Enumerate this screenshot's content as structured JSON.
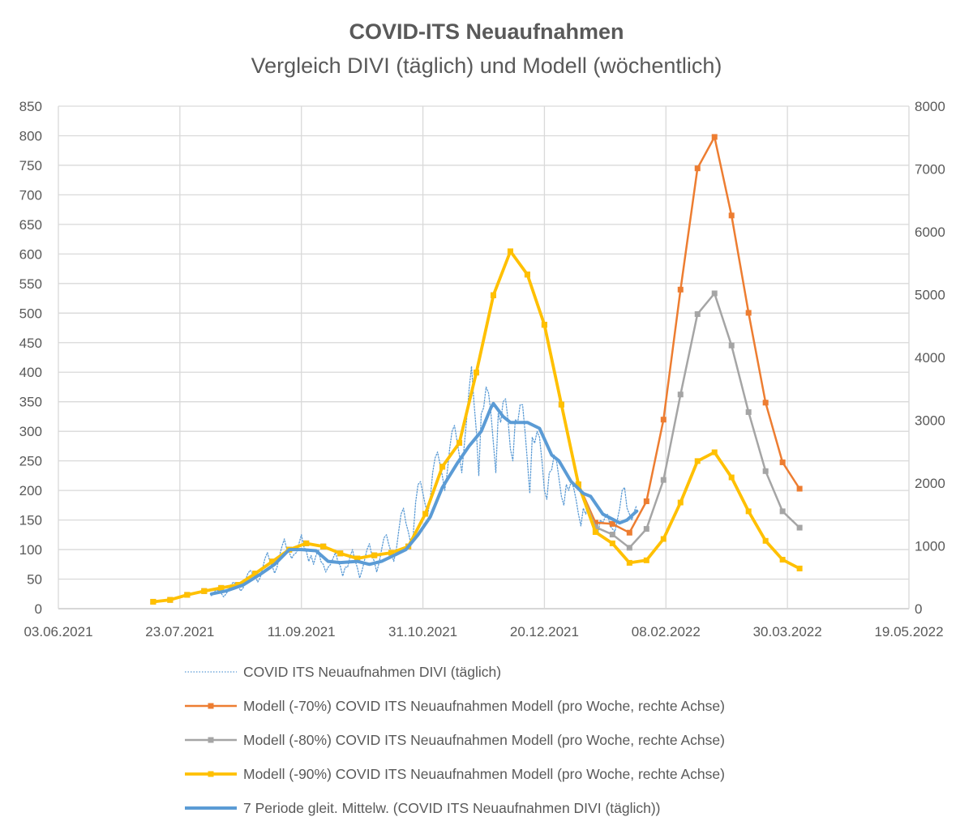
{
  "chart_data": {
    "type": "line",
    "title": "COVID-ITS Neuaufnahmen",
    "subtitle": "Vergleich DIVI (täglich) und Modell (wöchentlich)",
    "x_axis": {
      "type": "date",
      "start_date": "03.06.2021",
      "unit": "days since start_date",
      "range": [
        0,
        350
      ],
      "tick_labels": [
        "03.06.2021",
        "23.07.2021",
        "11.09.2021",
        "31.10.2021",
        "20.12.2021",
        "08.02.2022",
        "30.03.2022",
        "19.05.2022"
      ]
    },
    "y_left": {
      "range": [
        0,
        850
      ],
      "ticks": [
        "0",
        "50",
        "100",
        "150",
        "200",
        "250",
        "300",
        "350",
        "400",
        "450",
        "500",
        "550",
        "600",
        "650",
        "700",
        "750",
        "800",
        "850"
      ]
    },
    "y_right": {
      "range": [
        0,
        8000
      ],
      "ticks": [
        "0",
        "1000",
        "2000",
        "3000",
        "4000",
        "5000",
        "6000",
        "7000",
        "8000"
      ]
    },
    "grid": true,
    "legend_position": "bottom",
    "series": [
      {
        "name": "COVID ITS Neuaufnahmen DIVI (täglich)",
        "axis": "left",
        "style": "dotted",
        "color": "#5b9bd5",
        "start_day": 63,
        "values": [
          22,
          28,
          32,
          30,
          26,
          20,
          25,
          32,
          40,
          45,
          42,
          38,
          30,
          35,
          48,
          60,
          65,
          58,
          55,
          45,
          52,
          68,
          85,
          95,
          80,
          72,
          60,
          70,
          90,
          105,
          118,
          100,
          95,
          85,
          92,
          95,
          110,
          125,
          105,
          98,
          80,
          90,
          75,
          90,
          100,
          80,
          75,
          62,
          70,
          75,
          85,
          95,
          80,
          72,
          55,
          70,
          70,
          88,
          100,
          82,
          70,
          52,
          65,
          82,
          100,
          110,
          90,
          80,
          62,
          78,
          100,
          120,
          125,
          108,
          95,
          80,
          98,
          130,
          160,
          170,
          145,
          130,
          110,
          125,
          180,
          210,
          215,
          195,
          175,
          160,
          185,
          230,
          255,
          265,
          245,
          225,
          200,
          230,
          270,
          300,
          310,
          285,
          260,
          230,
          275,
          320,
          370,
          410,
          350,
          300,
          225,
          330,
          340,
          375,
          365,
          330,
          280,
          230,
          330,
          315,
          350,
          355,
          320,
          270,
          250,
          320,
          315,
          345,
          345,
          300,
          250,
          195,
          290,
          280,
          300,
          290,
          250,
          200,
          185,
          230,
          235,
          260,
          250,
          220,
          190,
          175,
          210,
          200,
          215,
          205,
          185,
          160,
          140,
          170,
          160,
          175,
          165,
          145,
          130,
          125,
          150,
          145,
          155,
          160,
          140,
          135,
          130,
          150,
          170,
          200,
          205,
          170,
          160,
          150,
          165,
          175
        ]
      },
      {
        "name": "Modell (-70%) COVID ITS Neuaufnahmen Modell (pro Woche, rechte Achse)",
        "axis": "right",
        "style": "line-marker",
        "color": "#ed7d31",
        "start_day": 39,
        "step_days": 7,
        "values": [
          110,
          140,
          220,
          280,
          330,
          380,
          560,
          750,
          940,
          1040,
          990,
          880,
          800,
          850,
          890,
          990,
          1510,
          2260,
          2640,
          3760,
          4990,
          5690,
          5320,
          4520,
          3250,
          1980,
          1370,
          1350,
          1210,
          1710,
          3010,
          5080,
          7010,
          7510,
          6260,
          4710,
          3280,
          2330,
          1910
        ]
      },
      {
        "name": "Modell (-80%) COVID ITS Neuaufnahmen Modell (pro Woche, rechte Achse)",
        "axis": "right",
        "style": "line-marker",
        "color": "#a5a5a5",
        "start_day": 39,
        "step_days": 7,
        "values": [
          110,
          140,
          220,
          280,
          330,
          380,
          560,
          750,
          940,
          1040,
          990,
          880,
          800,
          850,
          890,
          990,
          1510,
          2260,
          2640,
          3760,
          4990,
          5690,
          5320,
          4520,
          3250,
          1980,
          1300,
          1180,
          970,
          1270,
          2050,
          3410,
          4690,
          5020,
          4190,
          3130,
          2190,
          1550,
          1290
        ]
      },
      {
        "name": "Modell (-90%) COVID ITS Neuaufnahmen Modell (pro Woche, rechte Achse)",
        "axis": "right",
        "style": "line-marker",
        "color": "#ffc000",
        "start_day": 39,
        "step_days": 7,
        "values": [
          110,
          140,
          220,
          280,
          330,
          380,
          560,
          750,
          940,
          1040,
          990,
          880,
          800,
          850,
          890,
          990,
          1510,
          2260,
          2640,
          3760,
          4990,
          5690,
          5320,
          4520,
          3250,
          1980,
          1220,
          1040,
          730,
          770,
          1110,
          1690,
          2350,
          2490,
          2090,
          1550,
          1080,
          780,
          640
        ]
      },
      {
        "name": "7 Periode gleit. Mittelw. (COVID ITS Neuaufnahmen DIVI (täglich))",
        "axis": "left",
        "style": "thick",
        "color": "#5b9bd5",
        "points_day_value": [
          [
            63,
            25
          ],
          [
            69,
            30
          ],
          [
            76,
            40
          ],
          [
            83,
            58
          ],
          [
            89,
            75
          ],
          [
            95,
            100
          ],
          [
            100,
            100
          ],
          [
            106,
            98
          ],
          [
            111,
            80
          ],
          [
            116,
            78
          ],
          [
            123,
            80
          ],
          [
            128,
            75
          ],
          [
            133,
            80
          ],
          [
            138,
            90
          ],
          [
            143,
            100
          ],
          [
            148,
            125
          ],
          [
            153,
            155
          ],
          [
            158,
            205
          ],
          [
            164,
            245
          ],
          [
            169,
            275
          ],
          [
            174,
            300
          ],
          [
            178,
            340
          ],
          [
            179,
            347
          ],
          [
            183,
            325
          ],
          [
            186,
            315
          ],
          [
            193,
            315
          ],
          [
            198,
            305
          ],
          [
            203,
            260
          ],
          [
            206,
            250
          ],
          [
            211,
            215
          ],
          [
            216,
            195
          ],
          [
            219,
            190
          ],
          [
            224,
            160
          ],
          [
            231,
            145
          ],
          [
            234,
            150
          ],
          [
            238,
            165
          ]
        ]
      }
    ]
  }
}
